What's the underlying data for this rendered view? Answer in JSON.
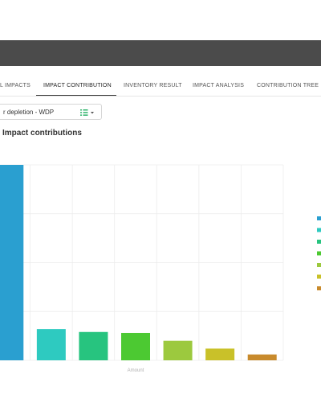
{
  "tabs": [
    {
      "label": "L IMPACTS",
      "active": false
    },
    {
      "label": "IMPACT CONTRIBUTION",
      "active": true
    },
    {
      "label": "INVENTORY RESULT",
      "active": false
    },
    {
      "label": "IMPACT ANALYSIS",
      "active": false
    },
    {
      "label": "CONTRIBUTION TREE",
      "active": false
    }
  ],
  "selector": {
    "value": "r depletion - WDP",
    "icon": "list-filter-icon"
  },
  "section": {
    "title": "Impact contributions"
  },
  "chart_data": {
    "type": "bar",
    "title": "",
    "xlabel": "Amount",
    "ylabel": "",
    "ylim": [
      0,
      100
    ],
    "grid": true,
    "legend_position": "right",
    "series": [
      {
        "values": [
          100,
          16,
          14.5,
          14,
          10,
          6,
          3
        ]
      }
    ],
    "bar_colors": [
      "#2a9fd0",
      "#2ecac0",
      "#27c47f",
      "#4cc932",
      "#9cc93e",
      "#c9c129",
      "#c88a2c"
    ],
    "legend_colors": [
      "#2a9fd0",
      "#2ecac0",
      "#27c47f",
      "#4cc932",
      "#9cc93e",
      "#c9c129",
      "#c88a2c"
    ]
  }
}
